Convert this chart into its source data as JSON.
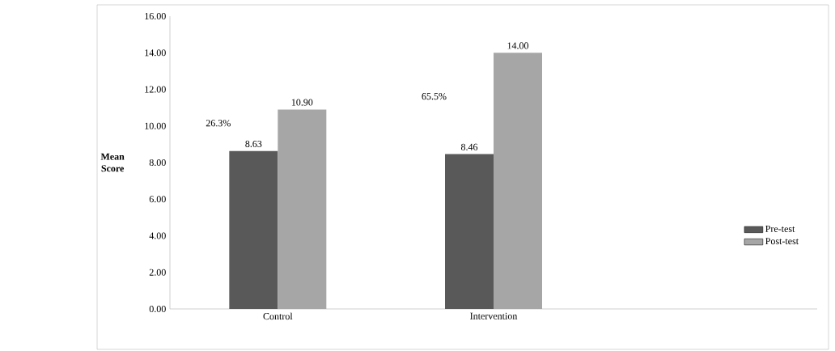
{
  "chart_data": {
    "type": "bar",
    "ylabel": "Mean Score",
    "categories": [
      "Control",
      "Intervention"
    ],
    "series": [
      {
        "name": "Pre-test",
        "color": "#595959",
        "values": [
          8.63,
          8.46
        ],
        "value_labels": [
          "8.63",
          "8.46"
        ]
      },
      {
        "name": "Post-test",
        "color": "#a6a6a6",
        "values": [
          10.9,
          14.0
        ],
        "value_labels": [
          "10.90",
          "14.00"
        ]
      }
    ],
    "ylim": [
      0,
      16
    ],
    "yticks": [
      {
        "value": 0,
        "label": "0.00"
      },
      {
        "value": 2,
        "label": "2.00"
      },
      {
        "value": 4,
        "label": "4.00"
      },
      {
        "value": 6,
        "label": "6.00"
      },
      {
        "value": 8,
        "label": "8.00"
      },
      {
        "value": 10,
        "label": "10.00"
      },
      {
        "value": 12,
        "label": "12.00"
      },
      {
        "value": 14,
        "label": "14.00"
      },
      {
        "value": 16,
        "label": "16.00"
      }
    ],
    "annotations": [
      "26.3%",
      "65.5%"
    ],
    "grid": false,
    "legend": "right"
  }
}
